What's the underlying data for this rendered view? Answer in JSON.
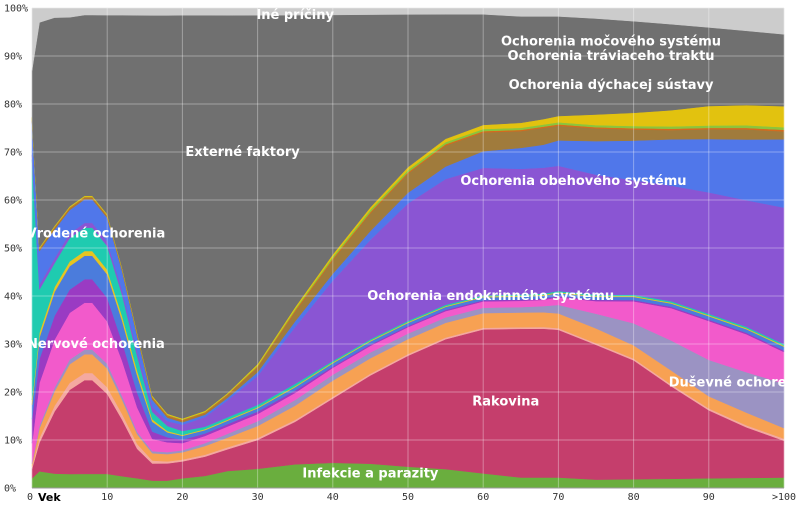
{
  "chart_data": {
    "type": "area",
    "stacked": true,
    "normalized": true,
    "x_axis": {
      "label": "Vek",
      "ticks": [
        0,
        10,
        20,
        30,
        40,
        50,
        60,
        70,
        80,
        90,
        100
      ],
      "tick_labels": [
        "0",
        "10",
        "20",
        "30",
        "40",
        "50",
        "60",
        "70",
        "80",
        "90",
        ">100"
      ],
      "range": [
        0,
        100
      ]
    },
    "y_axis": {
      "ticks": [
        0,
        10,
        20,
        30,
        40,
        50,
        60,
        70,
        80,
        90,
        100
      ],
      "tick_labels": [
        "0%",
        "10%",
        "20%",
        "30%",
        "40%",
        "50%",
        "60%",
        "70%",
        "80%",
        "90%",
        "100%"
      ],
      "range": [
        0,
        100
      ]
    },
    "grid": true,
    "x": [
      0,
      1,
      3,
      5,
      7,
      8,
      10,
      12,
      14,
      16,
      18,
      20,
      23,
      26,
      30,
      35,
      40,
      45,
      50,
      55,
      60,
      65,
      68,
      70,
      75,
      80,
      85,
      90,
      95,
      100
    ],
    "series": [
      {
        "name": "Infekcie a parazity",
        "color": "#6aae3e",
        "values": [
          2,
          3.5,
          3,
          3,
          3,
          3,
          3,
          2.5,
          2,
          1.5,
          1.5,
          2,
          2.5,
          3.5,
          4,
          5,
          5.5,
          5.5,
          5,
          4.5,
          3.5,
          2.5,
          2.5,
          2.5,
          2,
          2,
          2,
          2,
          2,
          2
        ]
      },
      {
        "name": "Rakovina",
        "color": "#c53e6c",
        "values": [
          2,
          6,
          13,
          18,
          20,
          20,
          17,
          12,
          6,
          3.5,
          3.5,
          3.5,
          4,
          4.5,
          6,
          9,
          14,
          20,
          26,
          31,
          34.5,
          35.5,
          35.5,
          35,
          32,
          27,
          20,
          14,
          10,
          7
        ]
      },
      {
        "name": "",
        "color": "#f4a9a0",
        "values": [
          0.5,
          1,
          1.2,
          1.5,
          1.5,
          1.5,
          1.4,
          1.2,
          1,
          0.6,
          0.4,
          0.4,
          0.4,
          0.4,
          0.4,
          0.4,
          0.4,
          0.4,
          0.4,
          0.4,
          0.4,
          0.4,
          0.4,
          0.4,
          0.4,
          0.4,
          0.4,
          0.4,
          0.4,
          0.4
        ]
      },
      {
        "name": "",
        "color": "#f7a153",
        "values": [
          0.5,
          2,
          3,
          4,
          4,
          4,
          4,
          3,
          2,
          1.5,
          1.5,
          1.5,
          1.8,
          2,
          2.5,
          3,
          3.5,
          3.5,
          3.5,
          3.5,
          3.5,
          3.5,
          3.5,
          3.5,
          3.5,
          3,
          3,
          2.5,
          2.5,
          2
        ]
      },
      {
        "name": "Duševné ochorenia",
        "color": "#9b93c3",
        "values": [
          0.3,
          0.5,
          0.8,
          1,
          1,
          1,
          1,
          0.8,
          0.5,
          0.4,
          0.4,
          0.4,
          0.6,
          0.8,
          1,
          1.2,
          1.3,
          1.3,
          1.3,
          1.3,
          1.3,
          1.3,
          1.5,
          2,
          3.5,
          5,
          6.5,
          7.5,
          8,
          8.5
        ]
      },
      {
        "name": "Nervové ochorenia",
        "color": "#f25acb",
        "values": [
          4,
          9,
          10,
          10,
          10,
          10,
          9,
          7.5,
          5,
          2.5,
          2,
          1.5,
          1.5,
          1.5,
          1.5,
          1.5,
          1.5,
          1.5,
          1.5,
          1.5,
          1.5,
          1.5,
          1.5,
          1.8,
          3,
          5,
          7,
          8,
          7.5,
          6
        ]
      },
      {
        "name": "",
        "color": "#9a3bc3",
        "values": [
          5,
          5,
          5,
          5,
          5,
          5,
          5,
          4,
          3,
          1.5,
          1,
          0.7,
          0.5,
          0.5,
          0.5,
          0.5,
          0.3,
          0.3,
          0.3,
          0.3,
          0.3,
          0.3,
          0.3,
          0.3,
          0.3,
          0.3,
          0.3,
          0.3,
          0.3,
          0.3
        ]
      },
      {
        "name": "Ochorenia endokrinného systému",
        "color": "#4b7cdc",
        "values": [
          3,
          4.5,
          5,
          5,
          5,
          5,
          5,
          4.5,
          3.5,
          2,
          1,
          0.8,
          0.7,
          0.7,
          0.7,
          0.7,
          0.7,
          0.7,
          0.7,
          0.7,
          0.7,
          0.7,
          0.7,
          0.7,
          0.7,
          0.7,
          0.7,
          0.7,
          0.7,
          0.7
        ]
      },
      {
        "name": "",
        "color": "#e6c421",
        "values": [
          1,
          1,
          1,
          1,
          1,
          1,
          1,
          1,
          1,
          0.5,
          0.3,
          0.2,
          0.2,
          0.2,
          0.2,
          0.2,
          0.2,
          0.2,
          0.2,
          0.2,
          0.2,
          0.2,
          0.2,
          0.2,
          0.2,
          0.2,
          0.2,
          0.2,
          0.2,
          0.2
        ]
      },
      {
        "name": "Vrodené ochorenia",
        "color": "#1fcbb0",
        "values": [
          50,
          9,
          5,
          5,
          5,
          5,
          5,
          4.5,
          3,
          1.5,
          1,
          0.8,
          0.5,
          0.5,
          0.5,
          0.5,
          0.3,
          0.3,
          0.3,
          0.3,
          0.3,
          0.3,
          0.3,
          0.3,
          0.3,
          0.3,
          0.3,
          0.3,
          0.3,
          0.3
        ]
      },
      {
        "name": "Ochorenia obehového systému",
        "color": "#8a55d3",
        "values": [
          1,
          1,
          1,
          1,
          1,
          1,
          1,
          1,
          1,
          1,
          1,
          1.3,
          2,
          3.5,
          6,
          12,
          17.5,
          22.5,
          27.5,
          30,
          30.5,
          30,
          30,
          29.7,
          28.5,
          26,
          25,
          25,
          25,
          26
        ]
      },
      {
        "name": "Ochorenia dýchacej sústavy",
        "color": "#5077ea",
        "values": [
          7,
          7,
          6,
          5,
          5,
          5,
          5,
          4,
          3,
          1.5,
          0.7,
          0.5,
          0.5,
          0.5,
          0.8,
          1.2,
          1.5,
          2,
          2.5,
          3,
          4,
          5,
          5.5,
          6,
          8,
          9,
          10,
          11,
          12,
          13
        ]
      },
      {
        "name": "",
        "color": "#a07b3c",
        "values": [
          0.3,
          0.3,
          0.3,
          0.3,
          0.3,
          0.3,
          0.3,
          0.3,
          0.3,
          0.3,
          0.3,
          0.3,
          0.3,
          0.5,
          1,
          2,
          3,
          4,
          4.5,
          5,
          4.5,
          4,
          4,
          3.5,
          3,
          2.5,
          2,
          2,
          2,
          1.5
        ]
      },
      {
        "name": "Ochorenia tráviaceho traktu",
        "color": "#d66a1c",
        "values": [
          0.2,
          0.2,
          0.2,
          0.2,
          0.2,
          0.2,
          0.2,
          0.2,
          0.2,
          0.2,
          0.2,
          0.2,
          0.2,
          0.2,
          0.2,
          0.3,
          0.3,
          0.3,
          0.3,
          0.3,
          0.3,
          0.3,
          0.3,
          0.3,
          0.3,
          0.3,
          0.3,
          0.3,
          0.3,
          0.3
        ]
      },
      {
        "name": "",
        "color": "#8cc43c",
        "values": [
          0.1,
          0.1,
          0.1,
          0.1,
          0.1,
          0.1,
          0.1,
          0.1,
          0.1,
          0.1,
          0.1,
          0.1,
          0.1,
          0.1,
          0.2,
          0.3,
          0.4,
          0.5,
          0.5,
          0.5,
          0.5,
          0.5,
          0.5,
          0.5,
          0.5,
          0.5,
          0.5,
          0.5,
          0.5,
          0.5
        ]
      },
      {
        "name": "Ochorenia močového systému",
        "color": "#e2c20f",
        "values": [
          0.2,
          0.2,
          0.2,
          0.2,
          0.2,
          0.2,
          0.2,
          0.2,
          0.2,
          0.2,
          0.2,
          0.2,
          0.2,
          0.2,
          0.3,
          0.4,
          0.5,
          0.6,
          0.7,
          0.8,
          1,
          1.2,
          1.3,
          1.5,
          2.5,
          3,
          3.5,
          4,
          4,
          4
        ]
      },
      {
        "name": "Externé faktory",
        "color": "#707070",
        "values": [
          9.7,
          47,
          43.5,
          40.5,
          38.5,
          38.5,
          42.3,
          53.7,
          65.2,
          77.5,
          81,
          83.5,
          82,
          78,
          72.6,
          61.6,
          52.2,
          43.6,
          35.8,
          29.7,
          26.5,
          25.4,
          24.5,
          23.6,
          22.8,
          20.8,
          18.6,
          16.2,
          14.7,
          13.7
        ]
      },
      {
        "name": "Iné príčiny",
        "color": "#cccccc",
        "values": [
          13,
          3,
          2,
          2,
          1.5,
          1.5,
          1.5,
          1.5,
          1.5,
          1.5,
          1.5,
          1.5,
          1.5,
          1.5,
          1.5,
          1.5,
          1.5,
          1.5,
          1.5,
          1.5,
          1.5,
          2,
          2,
          2,
          2.5,
          3,
          3.5,
          4,
          4.5,
          5
        ]
      }
    ],
    "annotations": [
      {
        "text": "Iné príčiny",
        "x": 35,
        "y": 98.5
      },
      {
        "text": "Ochorenia močového systému",
        "x": 77,
        "y": 93
      },
      {
        "text": "Ochorenia tráviaceho traktu",
        "x": 77,
        "y": 90
      },
      {
        "text": "Ochorenia dýchacej sústavy",
        "x": 77,
        "y": 84
      },
      {
        "text": "Externé faktory",
        "x": 28,
        "y": 70
      },
      {
        "text": "Ochorenia obehového systému",
        "x": 72,
        "y": 64
      },
      {
        "text": "Vrodené ochorenia",
        "x": 8.5,
        "y": 53
      },
      {
        "text": "Ochorenia endokrinného systému",
        "x": 61,
        "y": 40
      },
      {
        "text": "Nervové ochorenia",
        "x": 8.5,
        "y": 30
      },
      {
        "text": "Duševné ochorenia",
        "x": 94,
        "y": 22
      },
      {
        "text": "Rakovina",
        "x": 63,
        "y": 18
      },
      {
        "text": "Infekcie a parazity",
        "x": 45,
        "y": 3
      }
    ]
  }
}
